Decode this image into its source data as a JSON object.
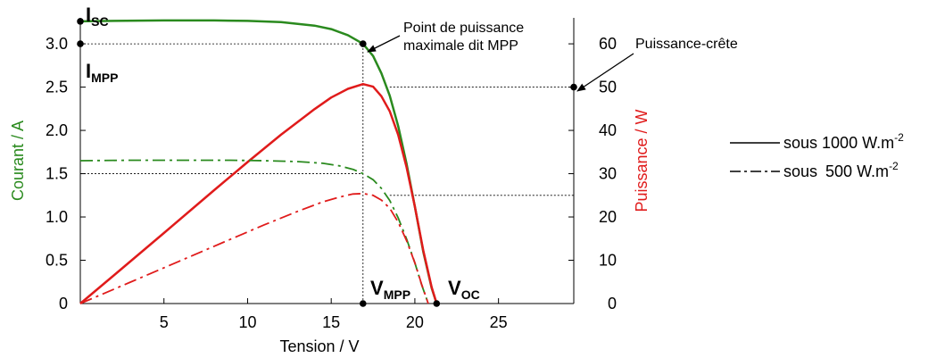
{
  "chart_data": {
    "type": "line",
    "xlabel": "Tension / V",
    "ylabel_left": "Courant / A",
    "ylabel_right": "Puissance / W",
    "xlim": [
      0,
      29.5
    ],
    "ylim_left": [
      0,
      3.3
    ],
    "ylim_right": [
      0,
      66
    ],
    "xticks": [
      "5",
      "10",
      "15",
      "20",
      "25"
    ],
    "yticks_left": [
      "0",
      "0.5",
      "1.0",
      "1.5",
      "2.0",
      "2.5",
      "3.0"
    ],
    "yticks_right": [
      "0",
      "10",
      "20",
      "30",
      "40",
      "50",
      "60"
    ],
    "colors": {
      "current": "#2a8a1e",
      "power": "#e01b1b",
      "axis": "#000000"
    },
    "series": [
      {
        "name": "sous 1000 W.m-2",
        "quantity": "current",
        "style": "solid",
        "x": [
          0,
          2,
          5,
          8,
          10,
          12,
          14,
          15,
          16,
          16.9,
          17.5,
          18,
          18.5,
          19,
          19.5,
          20,
          20.5,
          21,
          21.3
        ],
        "y": [
          3.26,
          3.265,
          3.27,
          3.27,
          3.265,
          3.25,
          3.21,
          3.17,
          3.1,
          3.0,
          2.86,
          2.66,
          2.4,
          2.05,
          1.62,
          1.12,
          0.6,
          0.18,
          0
        ]
      },
      {
        "name": "sous 1000 W.m-2",
        "quantity": "power",
        "style": "solid",
        "x": [
          0,
          2,
          5,
          8,
          10,
          12,
          14,
          15,
          16,
          16.9,
          17.5,
          18,
          18.5,
          19,
          19.5,
          20,
          20.5,
          21,
          21.3
        ],
        "y": [
          0,
          6.5,
          16.3,
          26.2,
          32.7,
          39.0,
          44.9,
          47.6,
          49.6,
          50.7,
          50.1,
          47.9,
          44.4,
          39.0,
          31.6,
          22.4,
          12.3,
          3.8,
          0
        ]
      },
      {
        "name": "sous 500 W.m-2",
        "quantity": "current",
        "style": "dashdot",
        "x": [
          0,
          3,
          6,
          9,
          11,
          13,
          14.5,
          15.5,
          16.3,
          16.9,
          17.5,
          18,
          18.5,
          19,
          19.5,
          20,
          20.4,
          20.8
        ],
        "y": [
          1.65,
          1.655,
          1.655,
          1.655,
          1.65,
          1.64,
          1.62,
          1.59,
          1.55,
          1.5,
          1.43,
          1.33,
          1.19,
          0.99,
          0.75,
          0.47,
          0.22,
          0
        ]
      },
      {
        "name": "sous 500 W.m-2",
        "quantity": "power",
        "style": "dashdot",
        "x": [
          0,
          3,
          6,
          9,
          11,
          13,
          14.5,
          15.5,
          16.3,
          16.9,
          17.5,
          18,
          18.5,
          19,
          19.5,
          20,
          20.4,
          20.8
        ],
        "y": [
          0,
          4.96,
          9.93,
          14.9,
          18.2,
          21.3,
          23.5,
          24.6,
          25.3,
          25.4,
          25.0,
          23.9,
          22.0,
          18.8,
          14.6,
          9.4,
          4.5,
          0
        ]
      }
    ],
    "guides": [
      {
        "kind": "h",
        "axis": "left",
        "y": 3.0,
        "x0": 0,
        "x1": 16.9
      },
      {
        "kind": "h",
        "axis": "left",
        "y": 1.5,
        "x0": 0,
        "x1": 16.9
      },
      {
        "kind": "h",
        "axis": "right",
        "y": 50,
        "x0": 18.5,
        "x1": 29.5
      },
      {
        "kind": "h",
        "axis": "right",
        "y": 25,
        "x0": 18.5,
        "x1": 29.5
      },
      {
        "kind": "v",
        "x": 16.9,
        "y0": 0,
        "y1": 3.0
      }
    ],
    "points": [
      {
        "name": "isc",
        "axis": "left",
        "x": 0,
        "y": 3.26
      },
      {
        "name": "impp",
        "axis": "left",
        "x": 0,
        "y": 3.0
      },
      {
        "name": "mpp",
        "axis": "left",
        "x": 16.9,
        "y": 3.0
      },
      {
        "name": "vmpp",
        "axis": "left",
        "x": 16.9,
        "y": 0
      },
      {
        "name": "voc",
        "axis": "left",
        "x": 21.3,
        "y": 0
      },
      {
        "name": "peak",
        "axis": "right",
        "x": 29.5,
        "y": 50
      }
    ],
    "annotations": {
      "isc": {
        "main": "I",
        "sub": "SC"
      },
      "impp": {
        "main": "I",
        "sub": "MPP"
      },
      "vmpp": {
        "main": "V",
        "sub": "MPP"
      },
      "voc": {
        "main": "V",
        "sub": "OC"
      },
      "mpp_line1": "Point de puissance",
      "mpp_line2": "maximale dit MPP",
      "peak": "Puissance-crête"
    },
    "legend": {
      "placement": "right",
      "items": [
        {
          "style": "solid",
          "prefix": "sous",
          "value": "1000 W.m",
          "sup": "-2"
        },
        {
          "style": "dashdot",
          "prefix": "sous",
          "value": "500 W.m",
          "sup": "-2"
        }
      ]
    }
  }
}
